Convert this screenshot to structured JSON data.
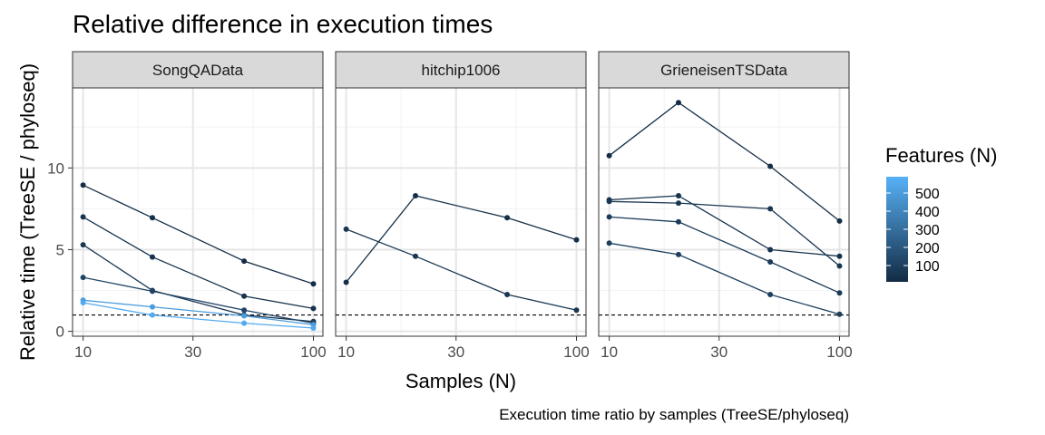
{
  "chart_data": {
    "type": "line",
    "title": "Relative difference in execution times",
    "caption": "Execution time ratio by samples (TreeSE/phyloseq)",
    "xlabel": "Samples (N)",
    "ylabel": "Relative time (TreeSE / phyloseq)",
    "x_scale": "log10",
    "xlim": [
      9,
      110
    ],
    "ylim": [
      -0.3,
      14.9
    ],
    "x_ticks": [
      10,
      30,
      100
    ],
    "y_ticks": [
      0,
      5,
      10
    ],
    "reference_line": {
      "y": 1,
      "style": "dashed"
    },
    "grid": true,
    "legend": {
      "title": "Features (N)",
      "placement": "right",
      "type": "colorbar",
      "breaks": [
        100,
        200,
        300,
        400,
        500
      ],
      "range": [
        10,
        590
      ],
      "low_color": "#132b43",
      "high_color": "#56b1f7"
    },
    "panels": [
      {
        "name": "SongQAData",
        "series": [
          {
            "features": 20,
            "x": [
              10,
              20,
              50,
              100
            ],
            "y": [
              8.95,
              6.95,
              4.3,
              2.9
            ]
          },
          {
            "features": 40,
            "x": [
              10,
              20,
              50,
              100
            ],
            "y": [
              7.0,
              4.55,
              2.15,
              1.4
            ]
          },
          {
            "features": 60,
            "x": [
              10,
              20,
              50,
              100
            ],
            "y": [
              5.3,
              2.5,
              1.0,
              0.6
            ]
          },
          {
            "features": 120,
            "x": [
              10,
              20,
              50,
              100
            ],
            "y": [
              3.3,
              2.45,
              1.3,
              0.5
            ]
          },
          {
            "features": 500,
            "x": [
              10,
              20,
              50,
              100
            ],
            "y": [
              1.9,
              1.5,
              0.95,
              0.4
            ]
          },
          {
            "features": 560,
            "x": [
              10,
              20,
              50,
              100
            ],
            "y": [
              1.75,
              1.0,
              0.5,
              0.2
            ]
          }
        ]
      },
      {
        "name": "hitchip1006",
        "series": [
          {
            "features": 30,
            "x": [
              10,
              20,
              50,
              100
            ],
            "y": [
              3.0,
              8.3,
              6.95,
              5.6
            ]
          },
          {
            "features": 60,
            "x": [
              10,
              20,
              50,
              100
            ],
            "y": [
              6.25,
              4.6,
              2.25,
              1.3
            ]
          }
        ]
      },
      {
        "name": "GrieneisenTSData",
        "series": [
          {
            "features": 20,
            "x": [
              10,
              20,
              50,
              100
            ],
            "y": [
              10.75,
              14.0,
              10.1,
              6.75
            ]
          },
          {
            "features": 40,
            "x": [
              10,
              20,
              50,
              100
            ],
            "y": [
              8.05,
              8.3,
              5.0,
              4.6
            ]
          },
          {
            "features": 60,
            "x": [
              10,
              20,
              50,
              100
            ],
            "y": [
              7.95,
              7.85,
              7.5,
              4.0
            ]
          },
          {
            "features": 80,
            "x": [
              10,
              20,
              50,
              100
            ],
            "y": [
              7.0,
              6.7,
              4.25,
              2.35
            ]
          },
          {
            "features": 100,
            "x": [
              10,
              20,
              50,
              100
            ],
            "y": [
              5.4,
              4.7,
              2.25,
              1.05
            ]
          }
        ]
      }
    ]
  }
}
